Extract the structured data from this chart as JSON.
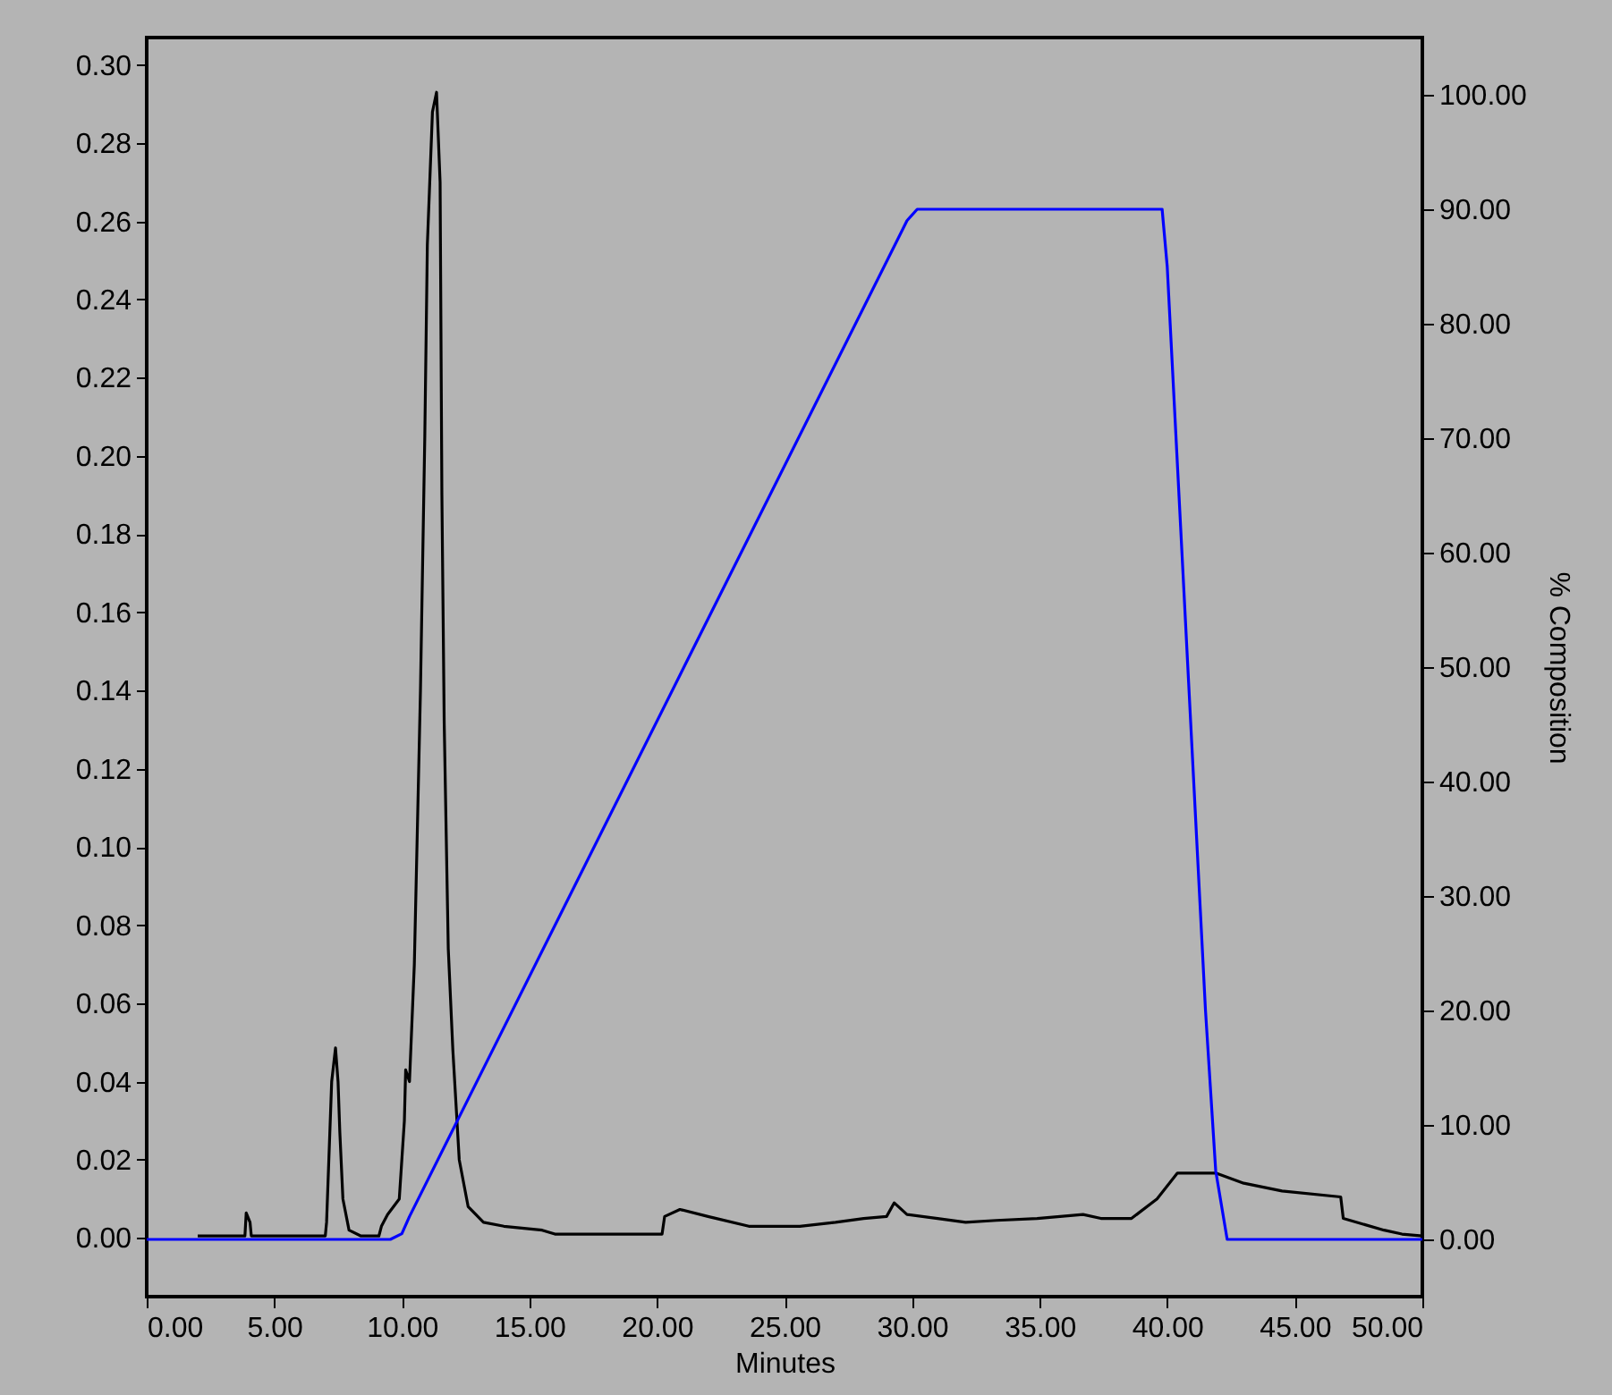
{
  "chart_data": {
    "type": "line",
    "xlabel": "Minutes",
    "y2label": "% Composition",
    "xlim": [
      0,
      50
    ],
    "ylim": [
      -0.015,
      0.307
    ],
    "y2lim": [
      -5,
      105
    ],
    "xticks": [
      {
        "value": 0,
        "label": "0.00"
      },
      {
        "value": 5,
        "label": "5.00"
      },
      {
        "value": 10,
        "label": "10.00"
      },
      {
        "value": 15,
        "label": "15.00"
      },
      {
        "value": 20,
        "label": "20.00"
      },
      {
        "value": 25,
        "label": "25.00"
      },
      {
        "value": 30,
        "label": "30.00"
      },
      {
        "value": 35,
        "label": "35.00"
      },
      {
        "value": 40,
        "label": "40.00"
      },
      {
        "value": 45,
        "label": "45.00"
      },
      {
        "value": 50,
        "label": "50.00"
      }
    ],
    "yticks": [
      {
        "value": 0,
        "label": "0.00"
      },
      {
        "value": 0.02,
        "label": "0.02"
      },
      {
        "value": 0.04,
        "label": "0.04"
      },
      {
        "value": 0.06,
        "label": "0.06"
      },
      {
        "value": 0.08,
        "label": "0.08"
      },
      {
        "value": 0.1,
        "label": "0.10"
      },
      {
        "value": 0.12,
        "label": "0.12"
      },
      {
        "value": 0.14,
        "label": "0.14"
      },
      {
        "value": 0.16,
        "label": "0.16"
      },
      {
        "value": 0.18,
        "label": "0.18"
      },
      {
        "value": 0.2,
        "label": "0.20"
      },
      {
        "value": 0.22,
        "label": "0.22"
      },
      {
        "value": 0.24,
        "label": "0.24"
      },
      {
        "value": 0.26,
        "label": "0.26"
      },
      {
        "value": 0.28,
        "label": "0.28"
      },
      {
        "value": 0.3,
        "label": "0.30"
      }
    ],
    "y2ticks": [
      {
        "value": 0,
        "label": "0.00"
      },
      {
        "value": 10,
        "label": "10.00"
      },
      {
        "value": 20,
        "label": "20.00"
      },
      {
        "value": 30,
        "label": "30.00"
      },
      {
        "value": 40,
        "label": "40.00"
      },
      {
        "value": 50,
        "label": "50.00"
      },
      {
        "value": 60,
        "label": "60.00"
      },
      {
        "value": 70,
        "label": "70.00"
      },
      {
        "value": 80,
        "label": "80.00"
      },
      {
        "value": 90,
        "label": "90.00"
      },
      {
        "value": 100,
        "label": "100.00"
      }
    ],
    "grid": false,
    "marker": "none",
    "line_style": "solid",
    "series": [
      {
        "color": "#000000",
        "axis": "y",
        "x": [
          2.0,
          3.85,
          3.9,
          4.05,
          4.1,
          7.0,
          7.05,
          7.25,
          7.4,
          7.5,
          7.57,
          7.69,
          7.93,
          8.4,
          9.1,
          9.2,
          9.44,
          9.9,
          10.1,
          10.15,
          10.3,
          10.49,
          10.61,
          10.73,
          10.9,
          11.0,
          11.2,
          11.36,
          11.5,
          11.57,
          11.66,
          11.82,
          12.0,
          12.25,
          12.6,
          13.2,
          14.0,
          15.5,
          16.0,
          20.2,
          20.3,
          20.9,
          22.0,
          23.6,
          25.6,
          27.0,
          28.1,
          29.0,
          29.3,
          29.8,
          31.0,
          32.1,
          33.3,
          34.9,
          36.7,
          37.4,
          38.6,
          39.6,
          40.4,
          41.9,
          43.0,
          44.5,
          46.8,
          46.9,
          48.5,
          49.2,
          50.0
        ],
        "values": [
          0.0005,
          0.0005,
          0.0064,
          0.004,
          0.0005,
          0.0005,
          0.004,
          0.04,
          0.0486,
          0.04,
          0.027,
          0.01,
          0.002,
          0.0005,
          0.0005,
          0.003,
          0.006,
          0.01,
          0.03,
          0.043,
          0.04,
          0.07,
          0.105,
          0.14,
          0.205,
          0.254,
          0.288,
          0.293,
          0.27,
          0.19,
          0.132,
          0.074,
          0.048,
          0.02,
          0.008,
          0.004,
          0.003,
          0.002,
          0.001,
          0.001,
          0.0055,
          0.0073,
          0.0055,
          0.003,
          0.003,
          0.004,
          0.005,
          0.0055,
          0.009,
          0.006,
          0.005,
          0.004,
          0.0045,
          0.005,
          0.006,
          0.005,
          0.005,
          0.01,
          0.0166,
          0.0166,
          0.014,
          0.012,
          0.0105,
          0.005,
          0.002,
          0.001,
          0.0005
        ]
      },
      {
        "color": "#0000ff",
        "axis": "y2",
        "x": [
          0,
          9.55,
          10.0,
          10.3,
          29.8,
          30.2,
          39.8,
          40.0,
          41.5,
          41.9,
          42.35,
          50
        ],
        "values": [
          0,
          0,
          0.5,
          2,
          89,
          90,
          90,
          85,
          20,
          6,
          0,
          0
        ]
      }
    ]
  }
}
